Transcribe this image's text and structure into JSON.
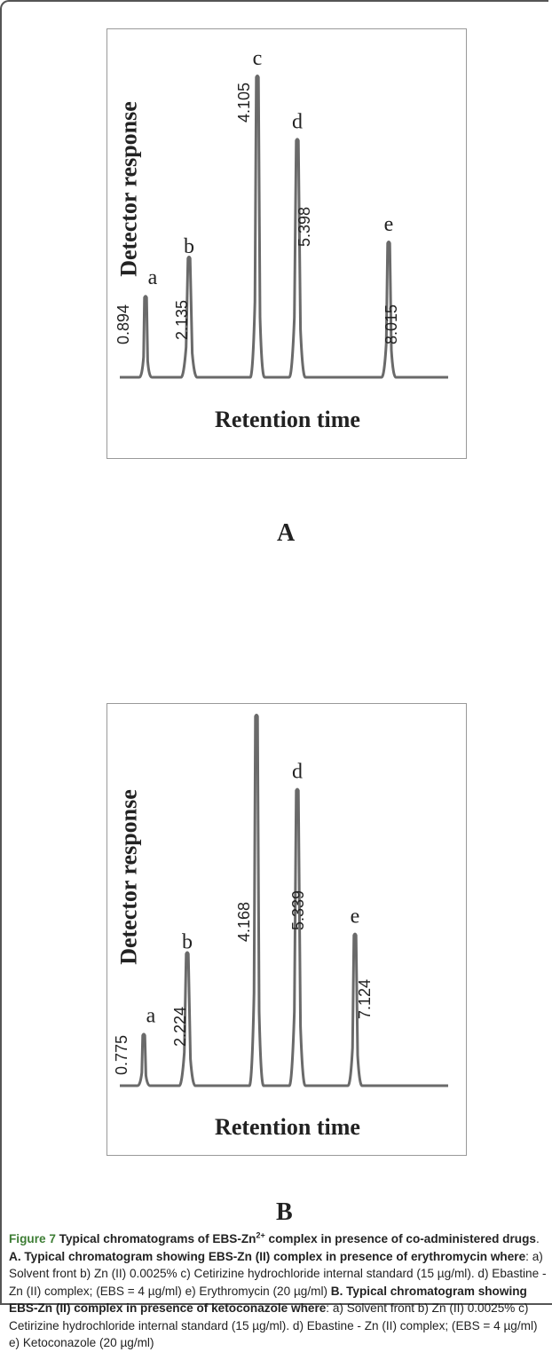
{
  "chart_data": [
    {
      "type": "line",
      "panel_label": "A",
      "xlabel": "Retention time",
      "ylabel": "Detector response",
      "peaks": [
        {
          "letter": "a",
          "time_label": "0.894",
          "height": 0.27
        },
        {
          "letter": "b",
          "time_label": "2.135",
          "height": 0.4
        },
        {
          "letter": "c",
          "time_label": "4.105",
          "height": 1.0
        },
        {
          "letter": "d",
          "time_label": "5.398",
          "height": 0.79
        },
        {
          "letter": "e",
          "time_label": "8.015",
          "height": 0.45
        }
      ]
    },
    {
      "type": "line",
      "panel_label": "B",
      "xlabel": "Retention time",
      "ylabel": "Detector response",
      "peaks": [
        {
          "letter": "a",
          "time_label": "0.775",
          "height": 0.14
        },
        {
          "letter": "b",
          "time_label": "2.224",
          "height": 0.36
        },
        {
          "letter": "c",
          "time_label": "4.168",
          "height": 1.0
        },
        {
          "letter": "d",
          "time_label": "5.339",
          "height": 0.8
        },
        {
          "letter": "e",
          "time_label": "7.124",
          "height": 0.41
        }
      ]
    }
  ],
  "caption": {
    "figure_label": "Figure 7",
    "title_part1": "Typical chromatograms of EBS-Zn",
    "title_sup": "2+",
    "title_part2": " complex in presence of co-administered drugs",
    "a_label": "A. Typical chromatogram showing EBS-Zn (II) complex in presence of erythromycin where",
    "a_text": ": a) Solvent front b) Zn (II) 0.0025% c) Cetirizine hydrochloride internal standard (15 µg/ml). d) Ebastine - Zn (II) complex; (EBS = 4 µg/ml) e) Erythromycin (20 µg/ml) ",
    "b_label": "B. Typical chromatogram showing EBS-Zn (II) complex in presence of ketoconazole where",
    "b_text": ": a) Solvent front b) Zn (II) 0.0025% c) Cetirizine hydrochloride internal standard (15 µg/ml). d) Ebastine - Zn (II) complex; (EBS = 4 µg/ml) e) Ketoconazole (20 µg/ml)"
  },
  "colors": {
    "trace": "#6a6a6a",
    "text": "#222222",
    "figure_label": "#3d7d34"
  }
}
